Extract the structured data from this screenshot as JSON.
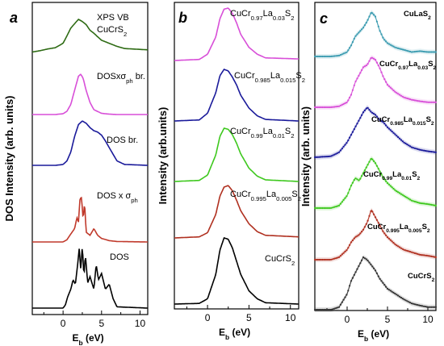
{
  "figure": {
    "panels": [
      {
        "id": "a",
        "letter": "a",
        "ylabel": "DOS Intensity (arb. units)",
        "xlabel": "E",
        "xlabel_sub": "b",
        "xlabel_unit": "(eV)",
        "x_ticks": [
          "0",
          "5",
          "10"
        ],
        "traces": [
          {
            "label": "XPS VB",
            "label2": "CuCrS",
            "label2_sub": "2",
            "color": "#2e6b14"
          },
          {
            "label": "DOSxσ",
            "label_sub": "ph",
            "label_tail": " br.",
            "color": "#d84fd8"
          },
          {
            "label": "DOS br.",
            "color": "#1a1a9a"
          },
          {
            "label": "DOS x σ",
            "label_sub": "ph",
            "color": "#c0392b"
          },
          {
            "label": "DOS",
            "color": "#000000"
          }
        ]
      },
      {
        "id": "b",
        "letter": "b",
        "ylabel": "Intensity (arb.units)",
        "xlabel": "E",
        "xlabel_sub": "b",
        "xlabel_unit": "(eV)",
        "x_ticks": [
          "0",
          "5",
          "10"
        ],
        "traces": [
          {
            "parts": [
              [
                "CuCr",
                ""
              ],
              [
                "0.97",
                "sub"
              ],
              [
                "La",
                ""
              ],
              [
                "0.03",
                "sub"
              ],
              [
                "S",
                ""
              ],
              [
                "2",
                "sub"
              ]
            ],
            "color": "#d84fd8"
          },
          {
            "parts": [
              [
                "CuCr",
                ""
              ],
              [
                "0.985",
                "sub"
              ],
              [
                "La",
                ""
              ],
              [
                "0.015",
                "sub"
              ],
              [
                "S",
                ""
              ],
              [
                "2",
                "sub"
              ]
            ],
            "color": "#1a1a9a"
          },
          {
            "parts": [
              [
                "CuCr",
                ""
              ],
              [
                "0.99",
                "sub"
              ],
              [
                "La",
                ""
              ],
              [
                "0.01",
                "sub"
              ],
              [
                "S",
                ""
              ],
              [
                "2",
                "sub"
              ]
            ],
            "color": "#3ec81e"
          },
          {
            "parts": [
              [
                "CuCr",
                ""
              ],
              [
                "0.995",
                "sub"
              ],
              [
                "La",
                ""
              ],
              [
                "0.005",
                "sub"
              ],
              [
                "S",
                ""
              ],
              [
                "2",
                "sub"
              ]
            ],
            "color": "#b03020"
          },
          {
            "parts": [
              [
                "CuCrS",
                ""
              ],
              [
                "2",
                "sub"
              ]
            ],
            "color": "#000000"
          }
        ]
      },
      {
        "id": "c",
        "letter": "c",
        "ylabel": "Intensity (arb. units)",
        "xlabel": "E",
        "xlabel_sub": "b",
        "xlabel_unit": "(eV)",
        "x_ticks": [
          "0",
          "5",
          "10"
        ],
        "traces": [
          {
            "parts": [
              [
                "CuLaS",
                ""
              ],
              [
                "2",
                "sub"
              ]
            ],
            "color": "#3a9bb0"
          },
          {
            "parts": [
              [
                "CuCr",
                ""
              ],
              [
                "0.97",
                "sub"
              ],
              [
                "La",
                ""
              ],
              [
                "0.03",
                "sub"
              ],
              [
                "S",
                ""
              ],
              [
                "2",
                "sub"
              ]
            ],
            "color": "#d84fd8"
          },
          {
            "parts": [
              [
                "CuCr",
                ""
              ],
              [
                "0.985",
                "sub"
              ],
              [
                "La",
                ""
              ],
              [
                "0.015",
                "sub"
              ],
              [
                "S",
                ""
              ],
              [
                "2",
                "sub"
              ]
            ],
            "color": "#1a1a9a"
          },
          {
            "parts": [
              [
                "CuCr",
                ""
              ],
              [
                "0.99",
                "sub"
              ],
              [
                "La",
                ""
              ],
              [
                "0.01",
                "sub"
              ],
              [
                "S",
                ""
              ],
              [
                "2",
                "sub"
              ]
            ],
            "color": "#3ec81e"
          },
          {
            "parts": [
              [
                "CuCr",
                ""
              ],
              [
                "0.995",
                "sub"
              ],
              [
                "La",
                ""
              ],
              [
                "0.005",
                "sub"
              ],
              [
                "S",
                ""
              ],
              [
                "2",
                "sub"
              ]
            ],
            "color": "#b03020"
          },
          {
            "parts": [
              [
                "CuCrS",
                ""
              ],
              [
                "2",
                "sub"
              ]
            ],
            "color": "#333333"
          }
        ]
      }
    ]
  },
  "chart_data": [
    {
      "type": "line",
      "panel": "a",
      "ylabel": "DOS Intensity (arb. units)",
      "xlabel": "E_b (eV)",
      "xlim": [
        -4,
        11
      ],
      "x_ticks": [
        0,
        5,
        10
      ],
      "series": [
        {
          "name": "XPS VB CuCrS2",
          "x": [
            -4,
            -3,
            -2,
            -1,
            0,
            0.5,
            1,
            1.5,
            2,
            2.5,
            3,
            3.5,
            4,
            4.5,
            5,
            6,
            7,
            8,
            9,
            10,
            11
          ],
          "y": [
            0.25,
            0.28,
            0.32,
            0.35,
            0.45,
            0.62,
            0.8,
            0.9,
            1.0,
            0.95,
            0.88,
            0.75,
            0.68,
            0.6,
            0.52,
            0.45,
            0.38,
            0.33,
            0.32,
            0.31,
            0.3
          ]
        },
        {
          "name": "DOSxσph br.",
          "x": [
            -4,
            -1,
            0,
            0.5,
            1,
            1.5,
            2,
            2.3,
            2.6,
            3,
            3.5,
            4,
            5,
            6,
            7,
            11
          ],
          "y": [
            0,
            0,
            0.02,
            0.08,
            0.25,
            0.6,
            0.95,
            1.0,
            0.9,
            0.6,
            0.3,
            0.12,
            0.03,
            0.01,
            0,
            0
          ]
        },
        {
          "name": "DOS br.",
          "x": [
            -4,
            -1,
            0,
            0.5,
            1,
            1.5,
            2,
            2.5,
            3,
            3.5,
            4,
            4.5,
            5,
            5.5,
            6,
            6.5,
            7,
            8,
            11
          ],
          "y": [
            0,
            0,
            0.02,
            0.1,
            0.3,
            0.65,
            0.92,
            1.0,
            0.95,
            0.85,
            0.78,
            0.75,
            0.68,
            0.55,
            0.4,
            0.25,
            0.1,
            0.02,
            0
          ]
        },
        {
          "name": "DOS x σph",
          "x": [
            -4,
            0,
            0.5,
            1,
            1.5,
            1.8,
            2,
            2.2,
            2.4,
            2.6,
            2.8,
            3,
            3.5,
            4,
            4.5,
            5,
            6,
            7,
            11
          ],
          "y": [
            0,
            0,
            0.05,
            0.18,
            0.3,
            0.55,
            0.45,
            0.98,
            1.0,
            0.5,
            0.9,
            0.22,
            0.15,
            0.3,
            0.15,
            0.08,
            0.03,
            0.01,
            0
          ]
        },
        {
          "name": "DOS",
          "x": [
            -4,
            0,
            0.3,
            0.6,
            1,
            1.3,
            1.6,
            1.9,
            2.1,
            2.3,
            2.5,
            2.7,
            2.9,
            3.2,
            3.5,
            4,
            4.3,
            4.6,
            5,
            5.5,
            6,
            6.5,
            7,
            11
          ],
          "y": [
            0,
            0,
            0.05,
            0.18,
            0.3,
            0.45,
            0.38,
            0.7,
            0.95,
            0.6,
            1.0,
            0.5,
            0.85,
            0.4,
            0.5,
            0.3,
            0.7,
            0.45,
            0.55,
            0.3,
            0.38,
            0.15,
            0.02,
            0
          ]
        }
      ]
    },
    {
      "type": "line",
      "panel": "b",
      "ylabel": "Intensity (arb.units)",
      "xlabel": "E_b (eV)",
      "xlim": [
        -4,
        11
      ],
      "x_ticks": [
        0,
        5,
        10
      ],
      "series": [
        {
          "name": "CuCr0.97La0.03S2",
          "x": [
            -4,
            -1,
            0,
            1,
            1.5,
            2,
            2.5,
            3,
            3.5,
            4,
            5,
            6,
            7,
            11
          ],
          "y": [
            0,
            0.02,
            0.12,
            0.45,
            0.8,
            0.98,
            1.0,
            0.9,
            0.72,
            0.5,
            0.25,
            0.12,
            0.05,
            0.03
          ]
        },
        {
          "name": "CuCr0.985La0.015S2",
          "x": [
            -4,
            -1,
            0,
            1,
            1.5,
            2,
            2.5,
            3,
            3.5,
            4,
            5,
            6,
            7,
            11
          ],
          "y": [
            0,
            0.02,
            0.15,
            0.55,
            0.88,
            1.0,
            0.97,
            0.85,
            0.7,
            0.5,
            0.25,
            0.1,
            0.03,
            0
          ]
        },
        {
          "name": "CuCr0.99La0.01S2",
          "x": [
            -4,
            -1,
            0,
            1,
            1.5,
            2,
            2.5,
            3,
            3.5,
            4,
            5,
            6,
            7,
            11
          ],
          "y": [
            0,
            0.02,
            0.12,
            0.5,
            0.85,
            1.0,
            0.98,
            0.88,
            0.72,
            0.52,
            0.25,
            0.1,
            0.03,
            0
          ]
        },
        {
          "name": "CuCr0.995La0.005S2",
          "x": [
            -4,
            -1,
            0,
            1,
            1.5,
            2,
            2.5,
            3,
            3.5,
            4,
            5,
            6,
            7,
            11
          ],
          "y": [
            0,
            0.02,
            0.1,
            0.45,
            0.8,
            0.97,
            1.0,
            0.9,
            0.72,
            0.52,
            0.27,
            0.12,
            0.05,
            0.02
          ]
        },
        {
          "name": "CuCrS2",
          "x": [
            -4,
            -1,
            0,
            1,
            1.5,
            2,
            2.5,
            3,
            3.5,
            4,
            5,
            6,
            7,
            11
          ],
          "y": [
            0,
            0.01,
            0.08,
            0.45,
            0.82,
            1.0,
            0.98,
            0.85,
            0.65,
            0.45,
            0.2,
            0.08,
            0.02,
            0
          ]
        }
      ]
    },
    {
      "type": "scatter",
      "panel": "c",
      "ylabel": "Intensity (arb. units)",
      "xlabel": "E_b (eV)",
      "xlim": [
        -4,
        11
      ],
      "x_ticks": [
        0,
        5,
        10
      ],
      "series": [
        {
          "name": "CuLaS2",
          "x": [
            -4,
            -2,
            -1,
            0,
            0.5,
            1,
            1.5,
            2,
            2.5,
            3,
            3.5,
            4,
            4.5,
            5,
            6,
            7,
            8,
            9,
            10,
            11
          ],
          "y": [
            0,
            0,
            0.02,
            0.1,
            0.25,
            0.45,
            0.55,
            0.65,
            0.8,
            1.0,
            0.9,
            0.6,
            0.4,
            0.3,
            0.2,
            0.15,
            0.1,
            0.12,
            0.1,
            0.1
          ]
        },
        {
          "name": "CuCr0.97La0.03S2",
          "x": [
            -4,
            -2,
            -1,
            0,
            0.5,
            1,
            1.5,
            2,
            2.5,
            3,
            3.5,
            4,
            4.5,
            5,
            6,
            7,
            8,
            9,
            10,
            11
          ],
          "y": [
            0,
            0,
            0.02,
            0.1,
            0.25,
            0.5,
            0.65,
            0.8,
            0.85,
            1.0,
            0.95,
            0.8,
            0.6,
            0.45,
            0.3,
            0.2,
            0.15,
            0.12,
            0.1,
            0.1
          ]
        },
        {
          "name": "CuCr0.985La0.015S2",
          "x": [
            -4,
            -2,
            -1,
            0,
            0.5,
            1,
            1.5,
            2,
            2.5,
            3,
            3.5,
            4,
            4.5,
            5,
            6,
            7,
            8,
            9,
            10,
            11
          ],
          "y": [
            0,
            0.02,
            0.1,
            0.3,
            0.45,
            0.6,
            0.75,
            0.9,
            1.0,
            0.9,
            0.85,
            0.75,
            0.7,
            0.6,
            0.45,
            0.3,
            0.2,
            0.15,
            0.12,
            0.1
          ]
        },
        {
          "name": "CuCr0.99La0.01S2",
          "x": [
            -4,
            -2,
            -1,
            0,
            0.5,
            1,
            1.5,
            2,
            2.5,
            3,
            3.5,
            4,
            4.5,
            5,
            6,
            7,
            8,
            9,
            10,
            11
          ],
          "y": [
            0,
            0,
            0.05,
            0.25,
            0.45,
            0.6,
            0.55,
            0.7,
            0.85,
            1.0,
            0.9,
            0.75,
            0.6,
            0.5,
            0.35,
            0.25,
            0.15,
            0.1,
            0.08,
            0.05
          ]
        },
        {
          "name": "CuCr0.995La0.005S2",
          "x": [
            -4,
            -2,
            -1,
            0,
            0.5,
            1,
            1.5,
            2,
            2.5,
            3,
            3.5,
            4,
            4.5,
            5,
            6,
            7,
            8,
            9,
            10,
            11
          ],
          "y": [
            0,
            0,
            0.05,
            0.2,
            0.35,
            0.45,
            0.5,
            0.6,
            0.75,
            1.0,
            0.85,
            0.7,
            0.55,
            0.45,
            0.3,
            0.2,
            0.15,
            0.1,
            0.08,
            0.05
          ]
        },
        {
          "name": "CuCrS2",
          "x": [
            -4,
            -2,
            -1,
            0,
            0.5,
            1,
            1.5,
            2,
            2.5,
            3,
            3.5,
            4,
            4.5,
            5,
            6,
            7,
            8,
            9,
            10,
            11
          ],
          "y": [
            0,
            0,
            0.05,
            0.3,
            0.55,
            0.7,
            0.85,
            1.0,
            0.95,
            0.85,
            0.75,
            0.6,
            0.5,
            0.4,
            0.3,
            0.2,
            0.12,
            0.08,
            0.05,
            0.05
          ]
        }
      ]
    }
  ]
}
